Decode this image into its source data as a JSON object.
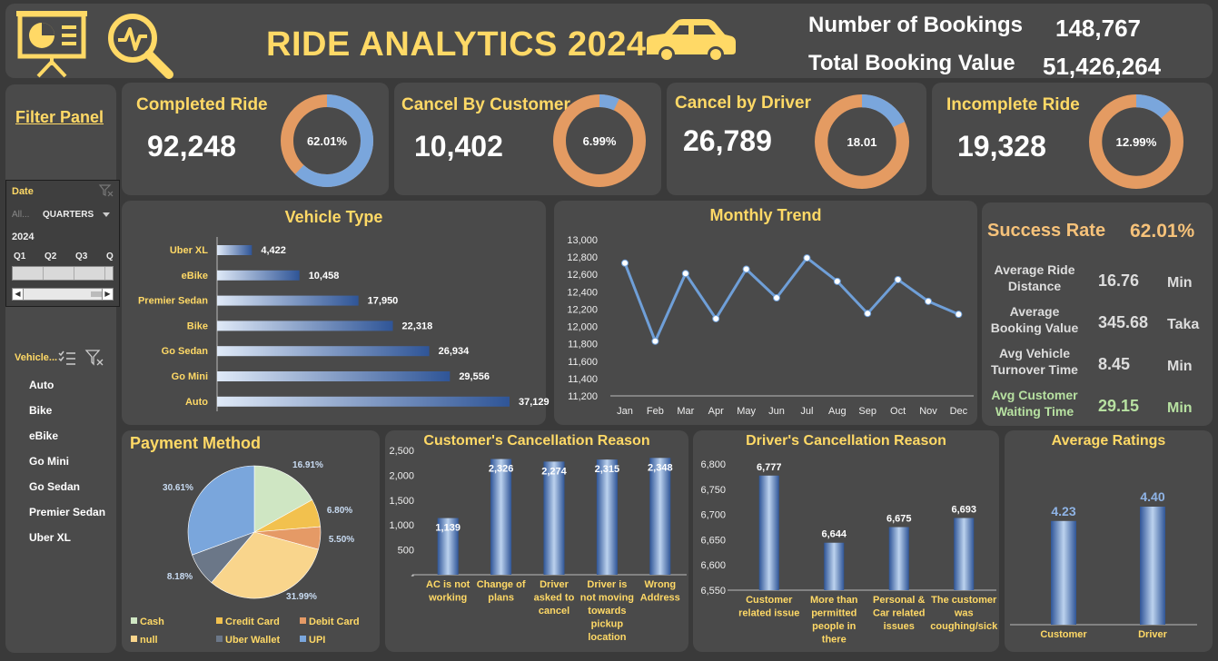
{
  "header": {
    "title": "RIDE ANALYTICS 2024",
    "bookings_label": "Number of Bookings",
    "bookings_value": "148,767",
    "booking_value_label": "Total Booking Value",
    "booking_value_value": "51,426,264",
    "icons": [
      "presentation-chart-icon",
      "search-analytics-icon",
      "car-icon"
    ]
  },
  "kpis": [
    {
      "title": "Completed Ride",
      "value": "92,248",
      "pct_label": "62.01%",
      "fraction": 0.6201
    },
    {
      "title": "Cancel By Customer",
      "value": "10,402",
      "pct_label": "6.99%",
      "fraction": 0.0699
    },
    {
      "title": "Cancel by Driver",
      "value": "26,789",
      "pct_label": "18.01",
      "fraction": 0.1801
    },
    {
      "title": "Incomplete Ride",
      "value": "19,328",
      "pct_label": "12.99%",
      "fraction": 0.1299
    }
  ],
  "filter_panel": {
    "title": "Filter Panel",
    "date_slicer": {
      "header": "Date",
      "all_label": "All...",
      "period": "QUARTERS",
      "year": "2024",
      "quarters": [
        "Q1",
        "Q2",
        "Q3",
        "Q"
      ]
    },
    "vehicle_slicer": {
      "header": "Vehicle...",
      "items": [
        "Auto",
        "Bike",
        "eBike",
        "Go Mini",
        "Go Sedan",
        "Premier Sedan",
        "Uber XL"
      ]
    }
  },
  "success": {
    "title": "Success Rate",
    "value": "62.01%",
    "stats": [
      {
        "label_line1": "Average Ride",
        "label_line2": "Distance",
        "value": "16.76",
        "unit": "Min",
        "highlight": false
      },
      {
        "label_line1": "Average",
        "label_line2": "Booking Value",
        "value": "345.68",
        "unit": "Taka",
        "highlight": false
      },
      {
        "label_line1": "Avg Vehicle",
        "label_line2": "Turnover Time",
        "value": "8.45",
        "unit": "Min",
        "highlight": false
      },
      {
        "label_line1": "Avg Customer",
        "label_line2": "Waiting Time",
        "value": "29.15",
        "unit": "Min",
        "highlight": true
      }
    ]
  },
  "colors": {
    "accent": "#ffd966",
    "panel": "#4a4a4a",
    "bg": "#3a3a3a",
    "blue": "#6f9fd8",
    "orange": "#c7773a",
    "green_text": "#b7e1a1"
  },
  "chart_data": [
    {
      "id": "vehicle-type",
      "type": "bar",
      "title": "Vehicle Type",
      "orientation": "horizontal",
      "categories": [
        "Uber XL",
        "eBike",
        "Premier Sedan",
        "Bike",
        "Go Sedan",
        "Go Mini",
        "Auto"
      ],
      "values": [
        4422,
        10458,
        17950,
        22318,
        26934,
        29556,
        37129
      ],
      "value_labels": [
        "4,422",
        "10,458",
        "17,950",
        "22,318",
        "26,934",
        "29,556",
        "37,129"
      ]
    },
    {
      "id": "monthly-trend",
      "type": "line",
      "title": "Monthly Trend",
      "categories": [
        "Jan",
        "Feb",
        "Mar",
        "Apr",
        "May",
        "Jun",
        "Jul",
        "Aug",
        "Sep",
        "Oct",
        "Nov",
        "Dec"
      ],
      "values": [
        12730,
        11830,
        12610,
        12090,
        12660,
        12330,
        12790,
        12520,
        12150,
        12540,
        12290,
        12140
      ],
      "ylim": [
        11200,
        13000
      ],
      "yticks": [
        "11,200",
        "11,400",
        "11,600",
        "11,800",
        "12,000",
        "12,200",
        "12,400",
        "12,600",
        "12,800",
        "13,000"
      ]
    },
    {
      "id": "payment-method",
      "type": "pie",
      "title": "Payment Method",
      "categories": [
        "Cash",
        "Credit Card",
        "Debit Card",
        "null",
        "Uber Wallet",
        "UPI"
      ],
      "values": [
        16.91,
        6.8,
        5.5,
        31.99,
        8.18,
        30.61
      ],
      "value_labels": [
        "16.91%",
        "6.80%",
        "5.50%",
        "31.99%",
        "8.18%",
        "30.61%"
      ],
      "colors": [
        "#cfe6c3",
        "#f2c14e",
        "#e59a66",
        "#f9d58c",
        "#6b7788",
        "#7aa6dc"
      ]
    },
    {
      "id": "customer-cancellation",
      "type": "bar",
      "title": "Customer's Cancellation Reason",
      "categories": [
        [
          "AC is not",
          "working"
        ],
        [
          "Change of",
          "plans"
        ],
        [
          "Driver",
          "asked to",
          "cancel"
        ],
        [
          "Driver is",
          "not moving",
          "towards",
          "pickup",
          "location"
        ],
        [
          "Wrong",
          "Address"
        ]
      ],
      "values": [
        1139,
        2326,
        2274,
        2315,
        2348
      ],
      "value_labels": [
        "1,139",
        "2,326",
        "2,274",
        "2,315",
        "2,348"
      ],
      "ylim": [
        0,
        2500
      ],
      "yticks": [
        "-",
        "500",
        "1,000",
        "1,500",
        "2,000",
        "2,500"
      ]
    },
    {
      "id": "driver-cancellation",
      "type": "bar",
      "title": "Driver's Cancellation Reason",
      "categories": [
        [
          "Customer",
          "related issue"
        ],
        [
          "More than",
          "permitted",
          "people in",
          "there"
        ],
        [
          "Personal &",
          "Car related",
          "issues"
        ],
        [
          "The customer",
          "was",
          "coughing/sick"
        ]
      ],
      "values": [
        6777,
        6644,
        6675,
        6693
      ],
      "value_labels": [
        "6,777",
        "6,644",
        "6,675",
        "6,693"
      ],
      "ylim": [
        6550,
        6800
      ],
      "yticks": [
        "6,550",
        "6,600",
        "6,650",
        "6,700",
        "6,750",
        "6,800"
      ]
    },
    {
      "id": "average-ratings",
      "type": "bar",
      "title": "Average Ratings",
      "categories": [
        "Customer",
        "Driver"
      ],
      "values": [
        4.23,
        4.4
      ],
      "value_labels": [
        "4.23",
        "4.40"
      ]
    }
  ]
}
